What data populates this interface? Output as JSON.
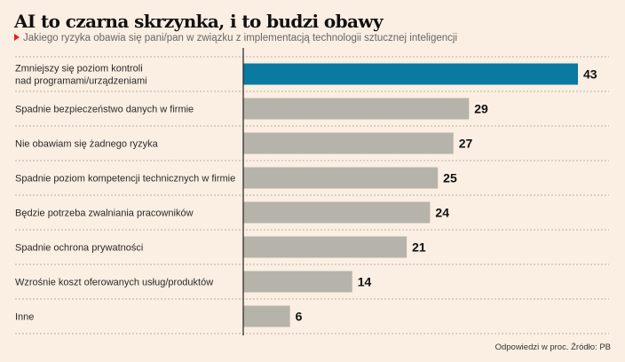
{
  "title": "AI to czarna skrzynka, i to budzi obawy",
  "subtitle": "Jakiego ryzyka obawia się pani/pan w związku z implementacją technologii sztucznej inteligencji",
  "source": "Odpowiedzi w proc. Źródło: PB",
  "colors": {
    "highlight": "#0a7aa0",
    "bar": "#b6b4aa",
    "axis": "#222222",
    "grid": "#bdb3aa"
  },
  "chart_data": {
    "type": "bar",
    "orientation": "horizontal",
    "title": "AI to czarna skrzynka, i to budzi obawy",
    "subtitle": "Jakiego ryzyka obawia się pani/pan w związku z implementacją technologii sztucznej inteligencji",
    "xlabel": "",
    "ylabel": "",
    "unit": "%",
    "xlim": [
      0,
      43
    ],
    "grid": false,
    "legend": "none",
    "categories": [
      [
        "Zmniejszy się poziom kontroli",
        "nad programami/urządzeniami"
      ],
      [
        "Spadnie bezpieczeństwo danych w firmie"
      ],
      [
        "Nie obawiam się żadnego ryzyka"
      ],
      [
        "Spadnie poziom kompetencji technicznych w firmie"
      ],
      [
        "Będzie potrzeba zwalniania pracowników"
      ],
      [
        "Spadnie ochrona prywatności"
      ],
      [
        "Wzrośnie koszt oferowanych usług/produktów"
      ],
      [
        "Inne"
      ]
    ],
    "values": [
      43,
      29,
      27,
      25,
      24,
      21,
      14,
      6
    ],
    "highlighted_index": 0
  }
}
